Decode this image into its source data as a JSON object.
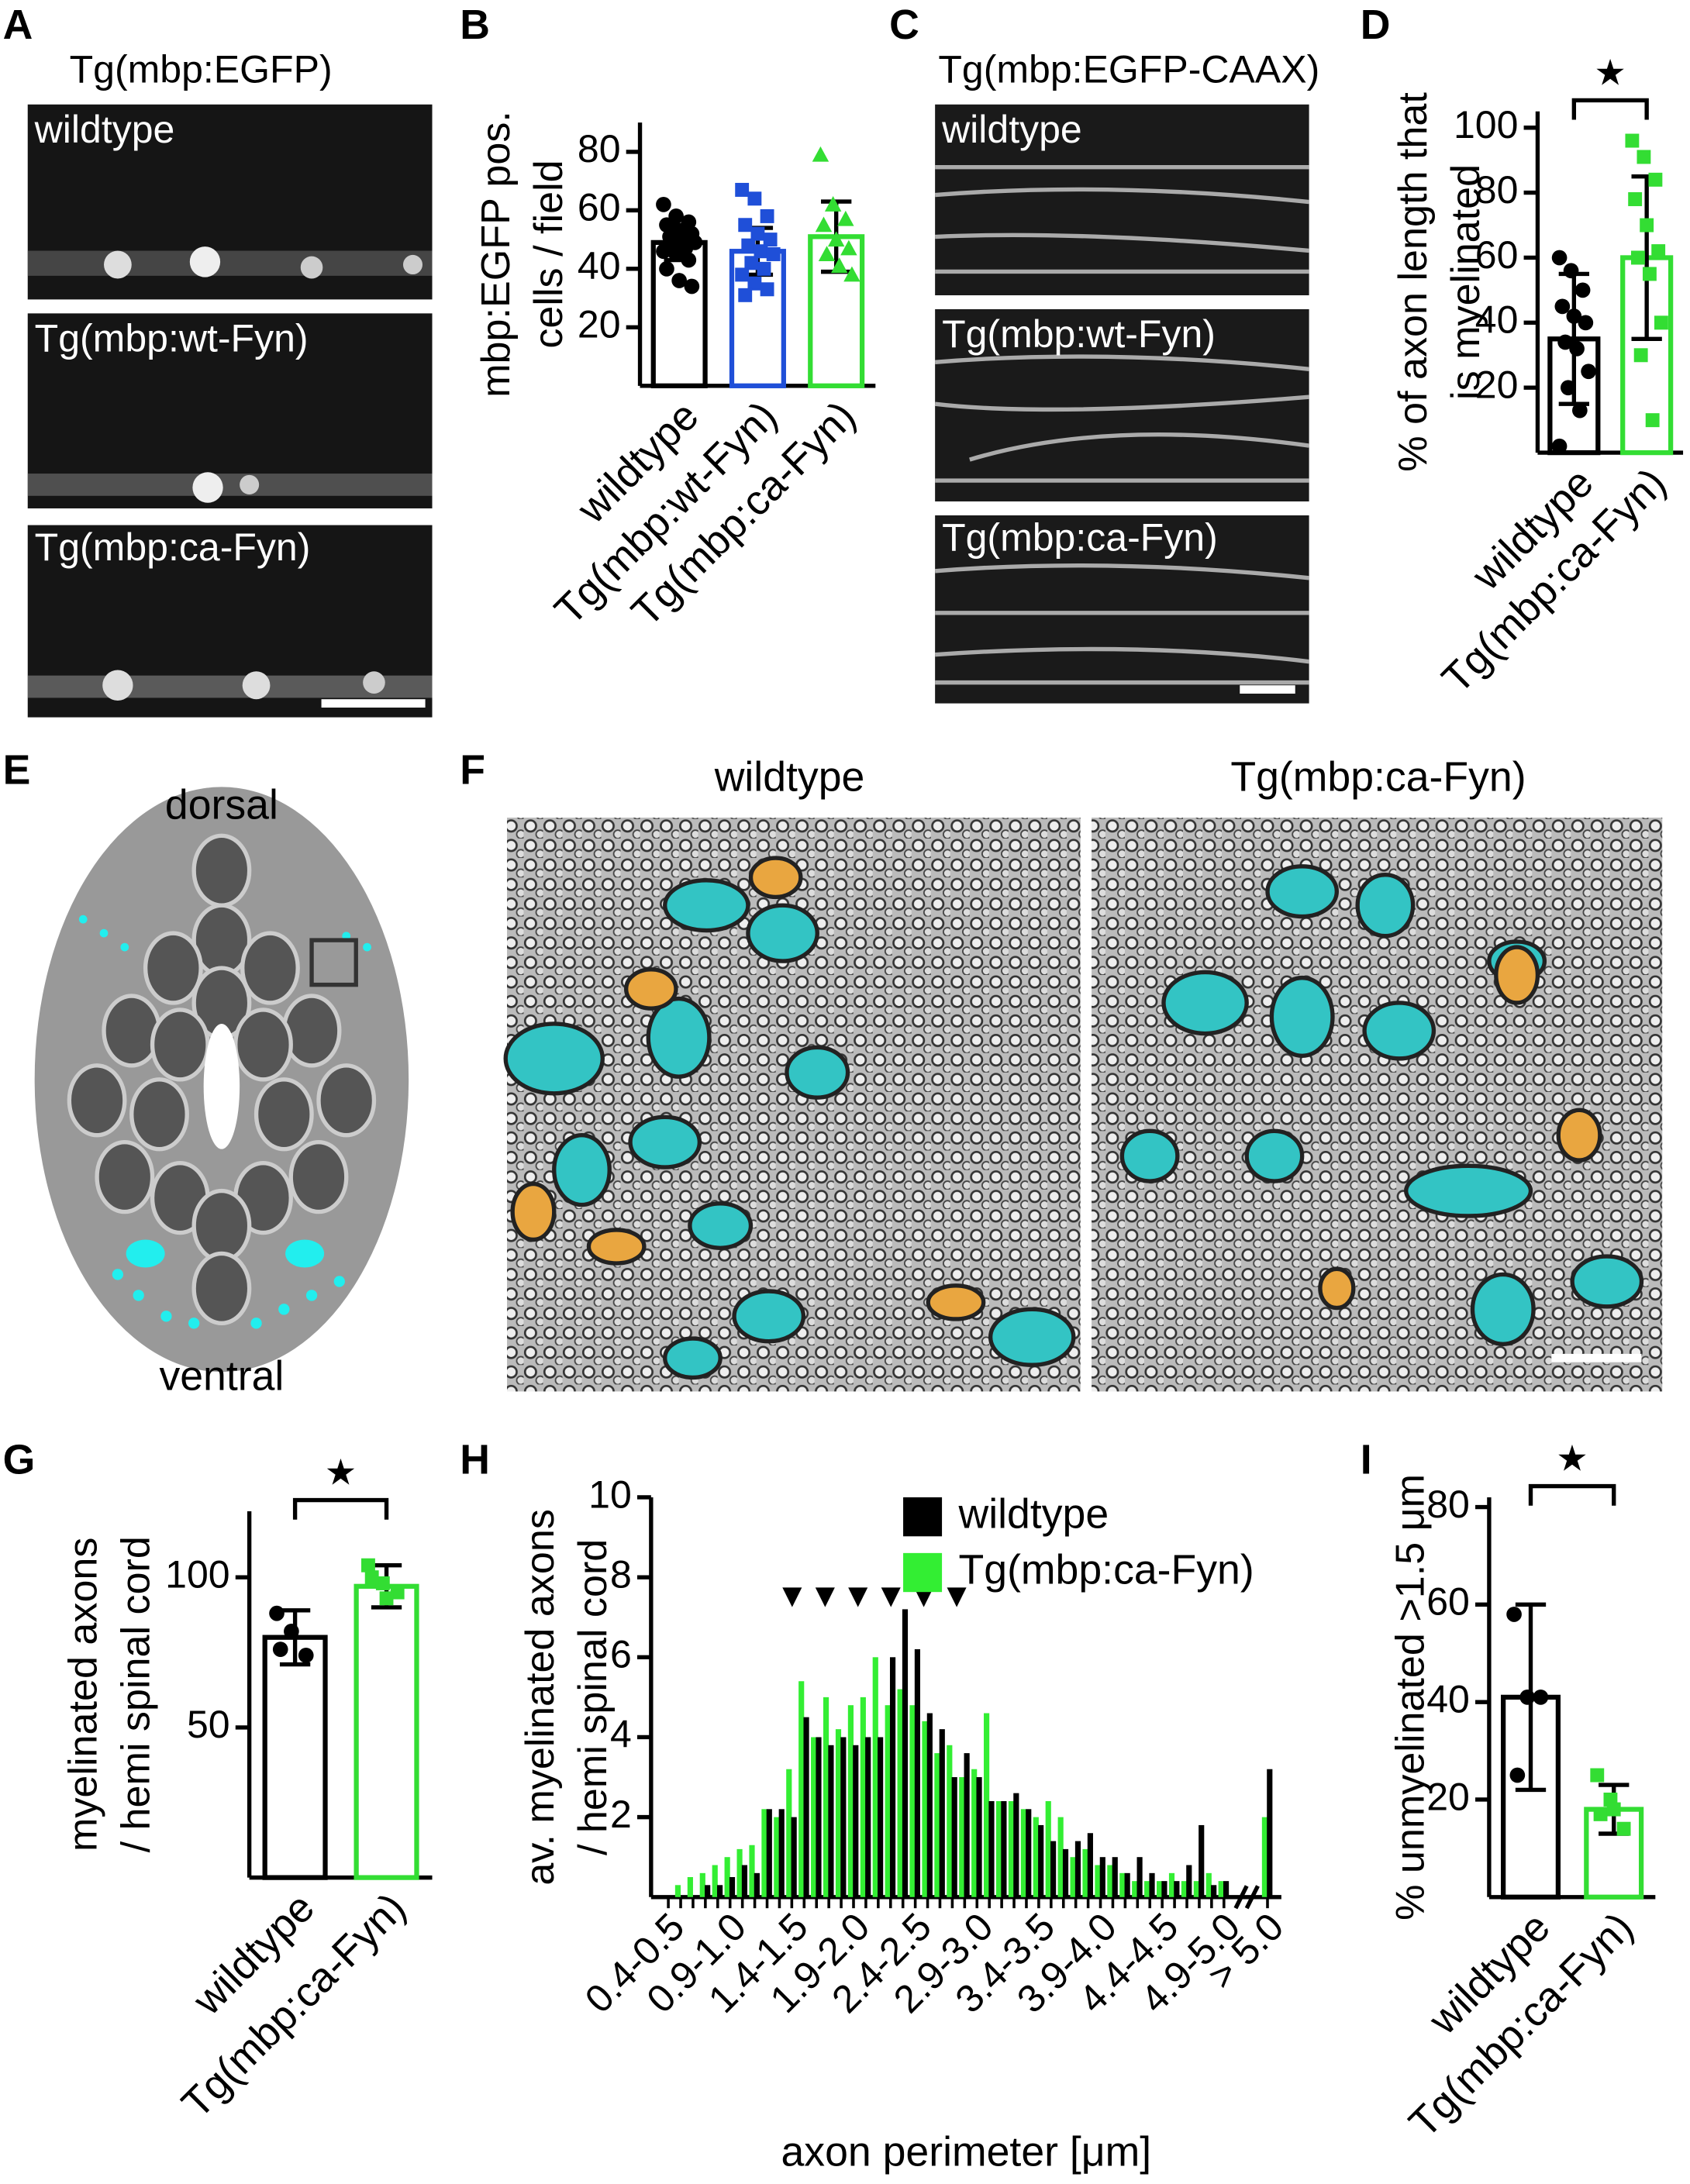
{
  "panel_labels": [
    "A",
    "B",
    "C",
    "D",
    "E",
    "F",
    "G",
    "H",
    "I"
  ],
  "panel_A": {
    "title": "Tg(mbp:EGFP)",
    "images": [
      "wildtype",
      "Tg(mbp:wt-Fyn)",
      "Tg(mbp:ca-Fyn)"
    ]
  },
  "panel_C": {
    "title": "Tg(mbp:EGFP-CAAX)",
    "images": [
      "wildtype",
      "Tg(mbp:wt-Fyn)",
      "Tg(mbp:ca-Fyn)"
    ]
  },
  "panel_E": {
    "top": "dorsal",
    "bottom": "ventral"
  },
  "panel_F": {
    "images": [
      "wildtype",
      "Tg(mbp:ca-Fyn)"
    ]
  },
  "chart_data": [
    {
      "type": "bar",
      "ylabel": [
        "mbp:EGFP pos.",
        "cells / field"
      ],
      "categories": [
        "wildtype",
        "Tg(mbp:wt-Fyn)",
        "Tg(mbp:ca-Fyn)"
      ],
      "values": [
        49,
        46,
        51
      ],
      "errors": [
        6,
        8,
        12
      ],
      "colors": [
        "#000000",
        "#1f4fd8",
        "#33dd33"
      ],
      "markers": [
        "circle",
        "square",
        "triangle"
      ],
      "points": [
        [
          62,
          58,
          56,
          55,
          53,
          52,
          51,
          50,
          49,
          48,
          47,
          46,
          45,
          43,
          40,
          36,
          34
        ],
        [
          67,
          64,
          58,
          55,
          52,
          50,
          48,
          46,
          45,
          42,
          40,
          38,
          35,
          33,
          31
        ],
        [
          79,
          62,
          57,
          55,
          50,
          47,
          45,
          41,
          38
        ]
      ],
      "ylim": [
        0,
        90
      ],
      "yticks": [
        20,
        40,
        60,
        80
      ]
    },
    {
      "type": "bar",
      "ylabel": [
        "% of axon length that",
        "is myelinated"
      ],
      "categories": [
        "wildtype",
        "Tg(mbp:ca-Fyn)"
      ],
      "values": [
        35,
        60
      ],
      "errors": [
        20,
        25
      ],
      "colors": [
        "#000000",
        "#33dd33"
      ],
      "markers": [
        "circle",
        "square"
      ],
      "points": [
        [
          60,
          56,
          50,
          45,
          42,
          40,
          34,
          32,
          25,
          20,
          13,
          2
        ],
        [
          96,
          91,
          84,
          78,
          70,
          62,
          60,
          55,
          40,
          30,
          10
        ]
      ],
      "ylim": [
        0,
        105
      ],
      "yticks": [
        20,
        40,
        60,
        80,
        100
      ],
      "significance": "★"
    },
    {
      "type": "bar",
      "ylabel": [
        "myelinated axons",
        "/ hemi spinal cord"
      ],
      "categories": [
        "wildtype",
        "Tg(mbp:ca-Fyn)"
      ],
      "values": [
        80,
        97
      ],
      "errors": [
        9,
        7
      ],
      "colors": [
        "#000000",
        "#33dd33"
      ],
      "markers": [
        "circle",
        "square"
      ],
      "points": [
        [
          88,
          82,
          74,
          76
        ],
        [
          104,
          98,
          95,
          100,
          93
        ]
      ],
      "ylim": [
        0,
        122
      ],
      "yticks": [
        50,
        100
      ],
      "significance": "★"
    },
    {
      "type": "histogram",
      "ylabel": [
        "av. myelinated axons",
        "/ hemi spinal cord"
      ],
      "xlabel": "axon perimeter [μm]",
      "categories": [
        "0.4-0.5",
        null,
        null,
        null,
        null,
        "0.9-1.0",
        null,
        null,
        null,
        null,
        "1.4-1.5",
        null,
        null,
        null,
        null,
        "1.9-2.0",
        null,
        null,
        null,
        null,
        "2.4-2.5",
        null,
        null,
        null,
        null,
        "2.9-3.0",
        null,
        null,
        null,
        null,
        "3.4-3.5",
        null,
        null,
        null,
        null,
        "3.9-4.0",
        null,
        null,
        null,
        null,
        "4.4-4.5",
        null,
        null,
        null,
        null,
        "4.9-5.0",
        "> 5.0"
      ],
      "series": [
        {
          "name": "wildtype",
          "color": "#000000",
          "values": [
            0,
            0,
            0,
            0.3,
            0.3,
            0.5,
            0.8,
            0.6,
            2.2,
            2.2,
            2,
            4.5,
            4,
            3.8,
            4,
            3.8,
            4,
            4,
            6,
            7.2,
            6.2,
            4.6,
            4.2,
            3,
            3.6,
            3,
            2.4,
            2.4,
            2.6,
            2.2,
            1.8,
            1.4,
            1.2,
            1.4,
            1.6,
            1,
            1,
            0.6,
            1,
            0.6,
            0.4,
            0.4,
            0.8,
            1.8,
            0.3,
            0.4,
            3.2
          ]
        },
        {
          "name": "Tg(mbp:ca-Fyn)",
          "color": "#33ee33",
          "values": [
            0,
            0.3,
            0.5,
            0.6,
            0.8,
            1,
            1.2,
            1.3,
            2.2,
            2,
            3.2,
            5.4,
            4,
            5,
            4.2,
            4.8,
            5,
            6,
            4.8,
            5.2,
            4.8,
            4.4,
            3.6,
            3.8,
            3,
            3.2,
            4.6,
            2.4,
            2.4,
            2.2,
            2,
            2.4,
            2,
            1,
            1.2,
            0.8,
            0.8,
            0.6,
            0.4,
            0.4,
            0.4,
            0.6,
            0.4,
            0.4,
            0.6,
            0.4,
            2
          ]
        }
      ],
      "ylim": [
        0,
        10
      ],
      "yticks": [
        2,
        4,
        6,
        8,
        10
      ],
      "annotation": "▼▼▼▼▼▼"
    },
    {
      "type": "bar",
      "ylabel": [
        "% unmyelinated >1.5 μm"
      ],
      "categories": [
        "wildtype",
        "Tg(mbp:ca-Fyn)"
      ],
      "values": [
        41,
        18
      ],
      "errors": [
        19,
        5
      ],
      "colors": [
        "#000000",
        "#33dd33"
      ],
      "markers": [
        "circle",
        "square"
      ],
      "points": [
        [
          58,
          41,
          41,
          25
        ],
        [
          25,
          20,
          14,
          17,
          18
        ]
      ],
      "ylim": [
        0,
        82
      ],
      "yticks": [
        20,
        40,
        60,
        80
      ],
      "significance": "★"
    }
  ]
}
